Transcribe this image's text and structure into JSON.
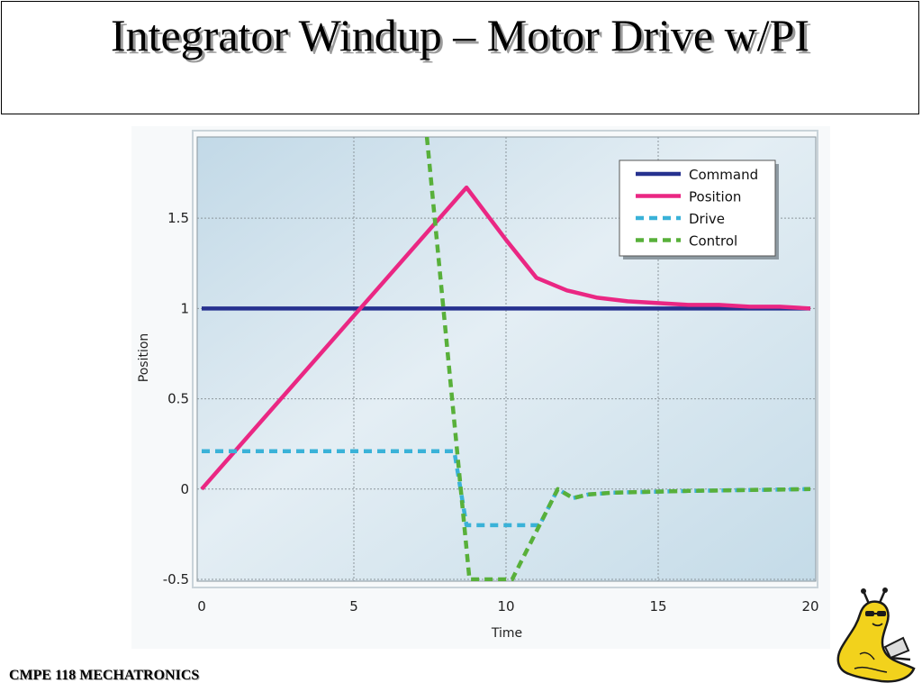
{
  "slide": {
    "title": "Integrator Windup – Motor Drive w/PI",
    "footer": "CMPE 118 MECHATRONICS",
    "mascot_icon": "banana-slug-mascot"
  },
  "colors": {
    "command": "#26318f",
    "position": "#ea2783",
    "drive": "#3ab2d8",
    "control": "#58b03a",
    "plot_bg": "#cfe0ea"
  },
  "chart_data": {
    "type": "line",
    "title": "",
    "xlabel": "Time",
    "ylabel": "Position",
    "xlim": [
      0,
      20
    ],
    "ylim": [
      -0.5,
      1.95
    ],
    "xticks": [
      0,
      5,
      10,
      15,
      20
    ],
    "xtick_labels": [
      "0",
      "5",
      "10",
      "15",
      "20"
    ],
    "yticks": [
      -0.5,
      0,
      0.5,
      1,
      1.5
    ],
    "ytick_labels": [
      "-0.5",
      "0",
      "0.5",
      "1",
      "1.5"
    ],
    "grid": true,
    "legend": "top-right",
    "series": [
      {
        "name": "Command",
        "style": "solid",
        "color": "#26318f",
        "x": [
          0,
          20
        ],
        "y": [
          1,
          1
        ]
      },
      {
        "name": "Position",
        "style": "solid",
        "color": "#ea2783",
        "x": [
          0,
          8.7,
          10,
          11,
          12,
          13,
          14,
          15,
          16,
          17,
          18,
          19,
          20
        ],
        "y": [
          0,
          1.67,
          1.38,
          1.17,
          1.1,
          1.06,
          1.04,
          1.03,
          1.02,
          1.02,
          1.01,
          1.01,
          1.0
        ]
      },
      {
        "name": "Drive",
        "style": "dashed",
        "color": "#3ab2d8",
        "x": [
          0,
          8.3,
          8.7,
          10.5,
          11.1,
          11.7,
          12.2,
          12.7,
          13.5,
          16,
          20
        ],
        "y": [
          0.21,
          0.21,
          -0.2,
          -0.2,
          -0.2,
          0.0,
          -0.05,
          -0.03,
          -0.02,
          -0.01,
          0.0
        ]
      },
      {
        "name": "Control",
        "style": "dashed",
        "color": "#58b03a",
        "x": [
          7.4,
          8.8,
          10.2,
          11.1,
          11.7,
          12.2,
          12.7,
          13.5,
          16,
          20
        ],
        "y": [
          1.95,
          -0.5,
          -0.5,
          -0.2,
          0.0,
          -0.05,
          -0.03,
          -0.02,
          -0.01,
          0.0
        ]
      }
    ]
  }
}
